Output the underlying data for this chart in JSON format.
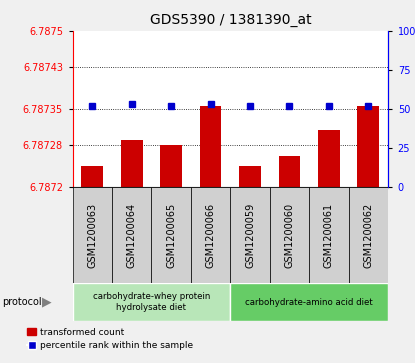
{
  "title": "GDS5390 / 1381390_at",
  "samples": [
    "GSM1200063",
    "GSM1200064",
    "GSM1200065",
    "GSM1200066",
    "GSM1200059",
    "GSM1200060",
    "GSM1200061",
    "GSM1200062"
  ],
  "bar_values": [
    6.78724,
    6.78729,
    6.78728,
    6.787355,
    6.78724,
    6.78726,
    6.78731,
    6.787355
  ],
  "percentile_values": [
    52,
    53,
    52,
    53,
    52,
    52,
    52,
    52
  ],
  "bar_color": "#cc0000",
  "percentile_color": "#0000cc",
  "ylim_left": [
    6.7872,
    6.7875
  ],
  "ylim_right": [
    0,
    100
  ],
  "yticks_left": [
    6.7872,
    6.78728,
    6.78735,
    6.78743,
    6.7875
  ],
  "yticks_right": [
    0,
    25,
    50,
    75,
    100
  ],
  "ytick_labels_left": [
    "6.7872",
    "6.78728",
    "6.78735",
    "6.78743",
    "6.7875"
  ],
  "ytick_labels_right": [
    "0",
    "25",
    "50",
    "75",
    "100%"
  ],
  "hlines": [
    6.78728,
    6.78735,
    6.78743
  ],
  "group1_label": "carbohydrate-whey protein\nhydrolysate diet",
  "group2_label": "carbohydrate-amino acid diet",
  "group1_color": "#b8e6b8",
  "group2_color": "#66cc66",
  "group1_indices": [
    0,
    1,
    2,
    3
  ],
  "group2_indices": [
    4,
    5,
    6,
    7
  ],
  "sample_bg_color": "#d0d0d0",
  "legend_bar_label": "transformed count",
  "legend_pct_label": "percentile rank within the sample",
  "protocol_label": "protocol",
  "background_color": "#f0f0f0",
  "plot_bg": "#ffffff",
  "title_fontsize": 10,
  "tick_fontsize": 7,
  "label_fontsize": 7
}
